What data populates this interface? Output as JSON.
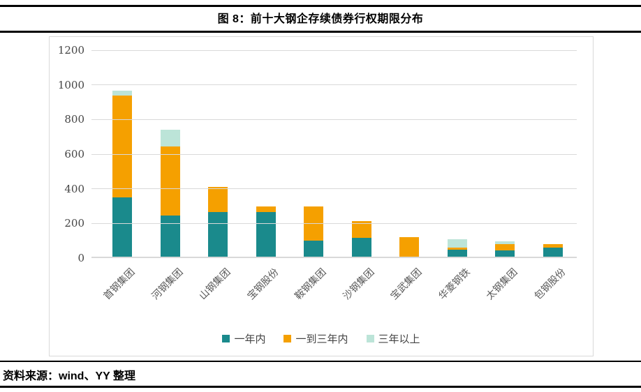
{
  "header": {
    "title": "图 8：前十大钢企存续债券行权期限分布"
  },
  "footer": {
    "source": "资料来源：wind、YY 整理"
  },
  "chart_data": {
    "type": "bar",
    "stacked": true,
    "title": "图 8：前十大钢企存续债券行权期限分布",
    "xlabel": "",
    "ylabel": "",
    "ylim": [
      0,
      1200
    ],
    "yticks": [
      0,
      200,
      400,
      600,
      800,
      1000,
      1200
    ],
    "grid": true,
    "legend_position": "bottom",
    "categories": [
      "首钢集团",
      "河钢集团",
      "山钢集团",
      "宝钢股份",
      "鞍钢集团",
      "沙钢集团",
      "宝武集团",
      "华菱钢铁",
      "太钢集团",
      "包钢股份"
    ],
    "series": [
      {
        "name": "一年内",
        "slug": "within-1y",
        "color": "#1A8A8C",
        "values": [
          350,
          245,
          265,
          265,
          100,
          115,
          0,
          50,
          45,
          60
        ]
      },
      {
        "name": "一到三年内",
        "slug": "1-to-3y",
        "color": "#F5A000",
        "values": [
          590,
          400,
          145,
          35,
          200,
          100,
          120,
          10,
          35,
          20
        ]
      },
      {
        "name": "三年以上",
        "slug": "over-3y",
        "color": "#BCE4D8",
        "values": [
          25,
          95,
          0,
          0,
          0,
          0,
          0,
          50,
          15,
          0
        ]
      }
    ],
    "colors": {
      "gridline": "#D9D9D9",
      "tick_text": "#444444",
      "category_text": "#595959"
    }
  }
}
